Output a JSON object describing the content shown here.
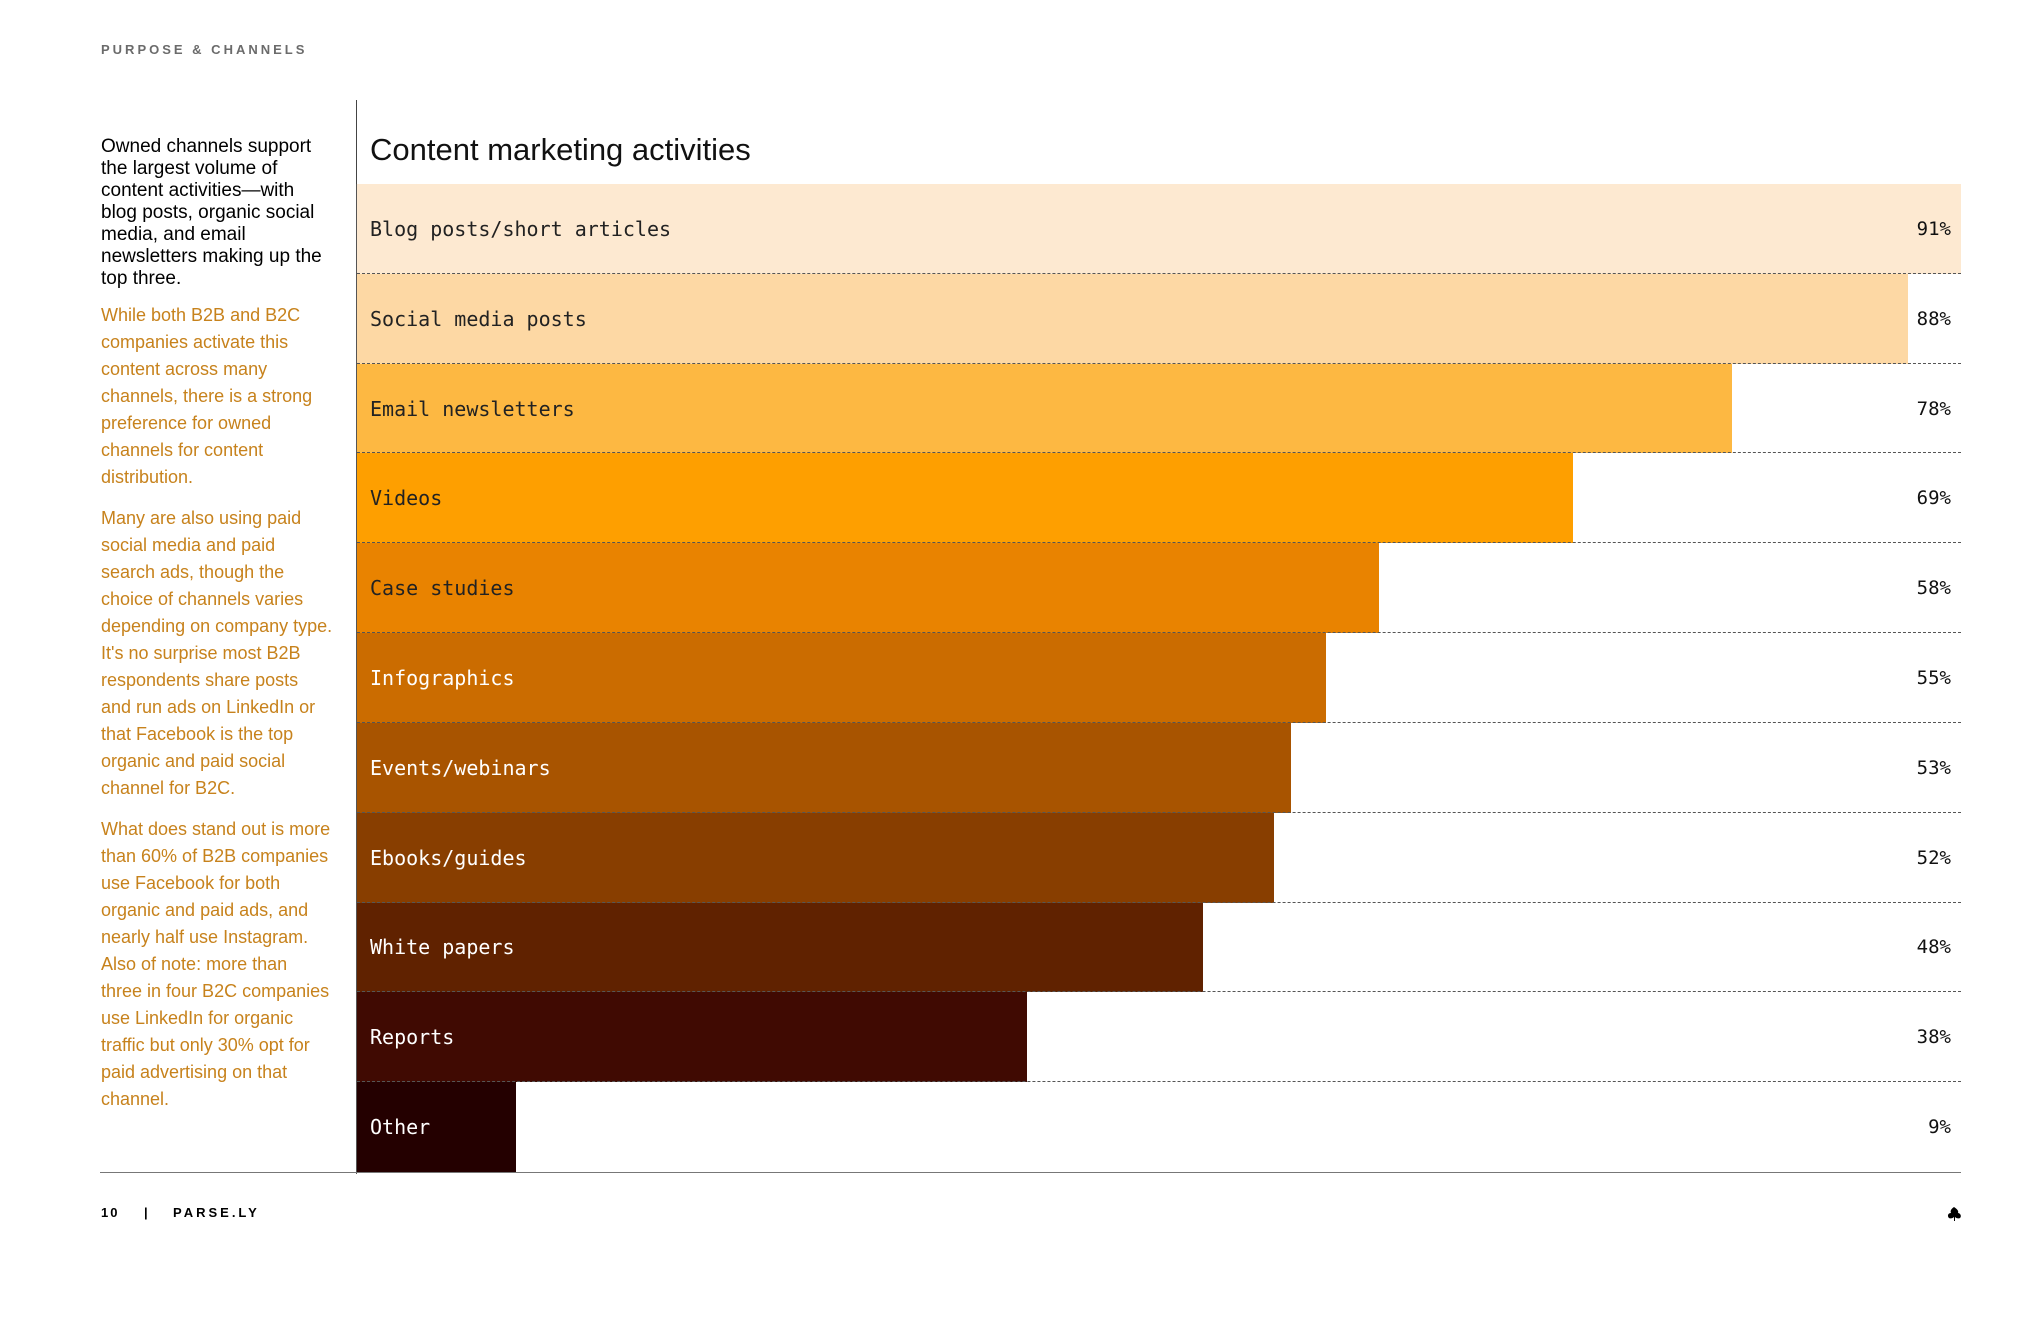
{
  "header": {
    "section_label": "PURPOSE & CHANNELS"
  },
  "intro": {
    "lead": "Owned channels support the largest volume of content activities—with blog posts, organic social media, and email newsletters making up the top three.",
    "paragraphs": [
      "While both B2B and B2C companies activate this content across many channels, there is a strong preference for owned channels for content distribution.",
      "Many are also using paid social media and paid search ads, though the choice of channels varies depending on company type. It's no surprise most B2B respondents share posts and run ads on LinkedIn or that Facebook is the top organic and paid social channel for B2C.",
      "What does stand out is more than 60% of B2B companies use Facebook for both organic and paid ads, and nearly half use Instagram. Also of note: more than three in four B2C companies use LinkedIn for organic traffic but only 30% opt for paid advertising on that channel."
    ]
  },
  "chart_data": {
    "type": "bar",
    "orientation": "horizontal",
    "title": "Content marketing activities",
    "xlabel": "",
    "ylabel": "",
    "xlim": [
      0,
      91
    ],
    "grid": false,
    "categories": [
      "Blog posts/short articles",
      "Social media posts",
      "Email newsletters",
      "Videos",
      "Case studies",
      "Infographics",
      "Events/webinars",
      "Ebooks/guides",
      "White papers",
      "Reports",
      "Other"
    ],
    "values": [
      91,
      88,
      78,
      69,
      58,
      55,
      53,
      52,
      48,
      38,
      9
    ],
    "value_labels": [
      "91%",
      "88%",
      "78%",
      "69%",
      "58%",
      "55%",
      "53%",
      "52%",
      "48%",
      "38%",
      "9%"
    ],
    "colors": [
      "#fde9d1",
      "#fdd8a4",
      "#fdb842",
      "#fe9f00",
      "#e98300",
      "#cb6c00",
      "#a85400",
      "#883e00",
      "#602200",
      "#400a02",
      "#240000"
    ],
    "label_colors": [
      "#222222",
      "#222222",
      "#222222",
      "#222222",
      "#222222",
      "#ffffff",
      "#ffffff",
      "#ffffff",
      "#ffffff",
      "#ffffff",
      "#ffffff"
    ]
  },
  "footer": {
    "page_number": "10",
    "separator": "|",
    "brand": "PARSE.LY",
    "logo_icon": "parsely-leaf-icon"
  }
}
